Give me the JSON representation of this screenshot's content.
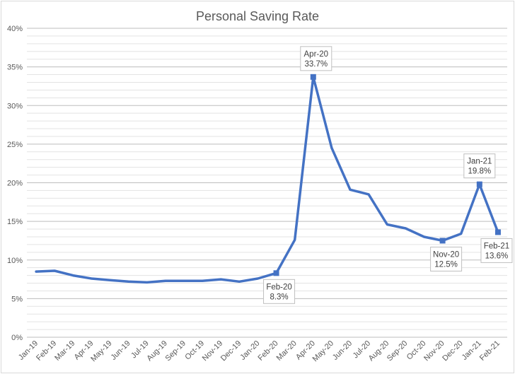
{
  "chart_data": {
    "type": "line",
    "title": "Personal Saving Rate",
    "xlabel": "",
    "ylabel": "",
    "ylim": [
      0,
      40
    ],
    "y_major_step": 5,
    "y_minor_step": 1,
    "y_tick_labels": [
      "0%",
      "5%",
      "10%",
      "15%",
      "20%",
      "25%",
      "30%",
      "35%",
      "40%"
    ],
    "grid": "horizontal major+minor",
    "legend": "none",
    "categories": [
      "Jan-19",
      "Feb-19",
      "Mar-19",
      "Apr-19",
      "May-19",
      "Jun-19",
      "Jul-19",
      "Aug-19",
      "Sep-19",
      "Oct-19",
      "Nov-19",
      "Dec-19",
      "Jan-20",
      "Feb-20",
      "Mar-20",
      "Apr-20",
      "May-20",
      "Jun-20",
      "Jul-20",
      "Aug-20",
      "Sep-20",
      "Oct-20",
      "Nov-20",
      "Dec-20",
      "Jan-21",
      "Feb-21"
    ],
    "values": [
      8.5,
      8.6,
      8.0,
      7.6,
      7.4,
      7.2,
      7.1,
      7.3,
      7.3,
      7.3,
      7.5,
      7.2,
      7.6,
      8.3,
      12.6,
      33.7,
      24.5,
      19.1,
      18.5,
      14.6,
      14.1,
      13.0,
      12.5,
      13.4,
      19.8,
      13.6
    ],
    "marker_indices": [
      13,
      15,
      22,
      24,
      25
    ],
    "annotations": [
      {
        "index": 13,
        "date_label": "Feb-20",
        "value_label": "8.3%",
        "placement": "below",
        "dx": 4
      },
      {
        "index": 15,
        "date_label": "Apr-20",
        "value_label": "33.7%",
        "placement": "above",
        "dx": 4
      },
      {
        "index": 22,
        "date_label": "Nov-20",
        "value_label": "12.5%",
        "placement": "below",
        "dx": 5
      },
      {
        "index": 24,
        "date_label": "Jan-21",
        "value_label": "19.8%",
        "placement": "above",
        "dx": 0
      },
      {
        "index": 25,
        "date_label": "Feb-21",
        "value_label": "13.6%",
        "placement": "below",
        "dx": -2
      }
    ]
  },
  "colors": {
    "line": "#4472C4",
    "marker": "#4472C4",
    "title_text": "#595959",
    "axis_text": "#595959",
    "annotation_text": "#404040",
    "annotation_border": "#BFBFBF",
    "annotation_fill": "#FFFFFF",
    "major_grid": "#BDBDBD",
    "minor_grid": "#E3E3E3",
    "chart_border": "#D9D9D9",
    "background": "#FFFFFF"
  }
}
